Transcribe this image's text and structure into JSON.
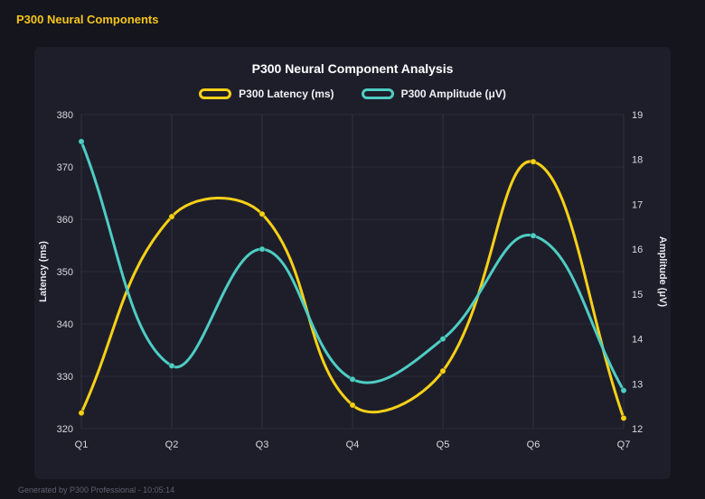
{
  "page": {
    "header_title": "P300 Neural Components",
    "footer_text": "Generated by P300 Professional - 10:05:14"
  },
  "colors": {
    "background": "#15151e",
    "panel": "#1e1e2b",
    "header_accent": "#f5c518",
    "latency_series": "#f7d117",
    "amplitude_series": "#4ecdc4"
  },
  "chart_data": {
    "type": "line",
    "title": "P300 Neural Component Analysis",
    "categories": [
      "Q1",
      "Q2",
      "Q3",
      "Q4",
      "Q5",
      "Q6",
      "Q7"
    ],
    "series": [
      {
        "name": "P300 Latency (ms)",
        "color": "#f7d117",
        "axis": "left",
        "values": [
          323,
          360.5,
          361,
          324.5,
          331,
          371,
          322
        ]
      },
      {
        "name": "P300 Amplitude (μV)",
        "color": "#4ecdc4",
        "axis": "right",
        "values": [
          18.4,
          13.4,
          16,
          13.1,
          14,
          16.3,
          12.85
        ]
      }
    ],
    "left_axis": {
      "label": "Latency (ms)",
      "min": 320,
      "max": 380,
      "step": 10
    },
    "right_axis": {
      "label": "Amplitude (μV)",
      "min": 12,
      "max": 19,
      "step": 1
    },
    "legend_position": "top",
    "grid": true,
    "curve_tension": 0.4
  }
}
